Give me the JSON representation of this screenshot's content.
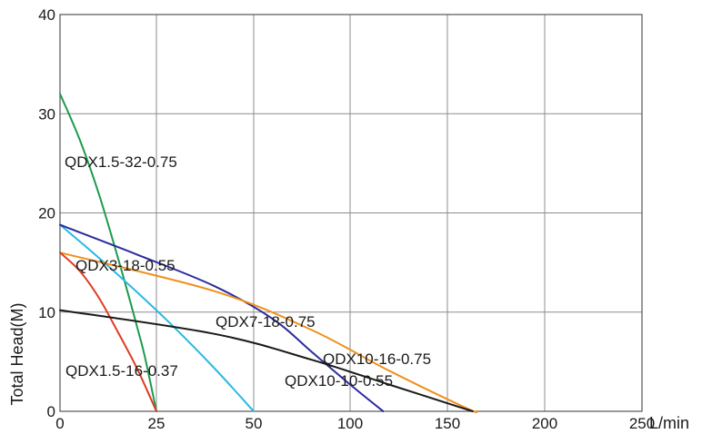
{
  "chart_data": {
    "type": "line",
    "title": "",
    "xlabel": "L/min",
    "ylabel": "Total Head(M)",
    "xlim": [
      0,
      250
    ],
    "ylim": [
      0,
      40
    ],
    "xticks": [
      "0",
      "25",
      "50",
      "100",
      "150",
      "200",
      "250"
    ],
    "xtick_values": [
      0,
      25,
      50,
      100,
      150,
      200,
      250
    ],
    "yticks": [
      "0",
      "10",
      "20",
      "30",
      "40"
    ],
    "ytick_values": [
      0,
      10,
      20,
      30,
      40
    ],
    "grid": true,
    "series": [
      {
        "name": "QDX1.5-32-0.75",
        "color": "#1e9a4e",
        "x": [
          0,
          5,
          10,
          15,
          20,
          22,
          25
        ],
        "y": [
          32,
          27.5,
          22,
          15.5,
          8.5,
          5.5,
          0
        ]
      },
      {
        "name": "QDX3-18-0.55",
        "color": "#2ab8e6",
        "x": [
          0,
          10,
          20,
          30,
          40,
          50
        ],
        "y": [
          18.8,
          15.5,
          12,
          8.3,
          4.3,
          0
        ]
      },
      {
        "name": "QDX7-18-0.75",
        "color": "#2b2b9e",
        "x": [
          0,
          20,
          40,
          60,
          80,
          100,
          117
        ],
        "y": [
          18.8,
          15.8,
          12.6,
          9.3,
          6,
          2.7,
          0
        ]
      },
      {
        "name": "QDX10-16-0.75",
        "color": "#f0901e",
        "x": [
          0,
          40,
          80,
          120,
          160,
          165
        ],
        "y": [
          16,
          12.1,
          8.2,
          4.1,
          0.3,
          0
        ]
      },
      {
        "name": "QDX1.5-16-0.37",
        "color": "#e03b24",
        "x": [
          0,
          5,
          10,
          15,
          20,
          25
        ],
        "y": [
          16,
          14.2,
          11.5,
          8,
          4.3,
          0
        ]
      },
      {
        "name": "QDX10-10-0.55",
        "color": "#1a1a1a",
        "x": [
          0,
          40,
          80,
          120,
          163
        ],
        "y": [
          10.2,
          7.8,
          5.2,
          2.7,
          0
        ]
      }
    ]
  }
}
